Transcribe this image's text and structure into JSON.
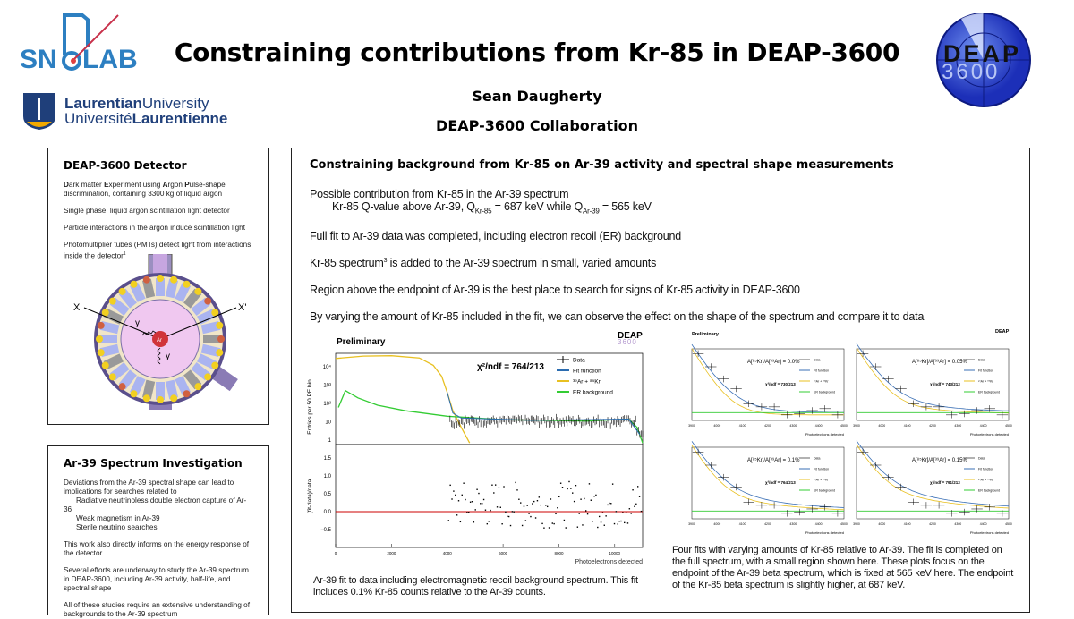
{
  "header": {
    "title": "Constraining contributions from Kr-85 in DEAP-3600",
    "author": "Sean Daugherty",
    "collaboration": "DEAP-3600 Collaboration",
    "logos": {
      "snolab": "SNOLAB",
      "laurentian_en_a": "Laurentian",
      "laurentian_en_b": "University",
      "laurentian_fr_a": "Université",
      "laurentian_fr_b": "Laurentienne",
      "deap_a": "DEAP",
      "deap_b": "3600"
    }
  },
  "detector": {
    "title": "DEAP-3600 Detector",
    "p1": [
      "D",
      "ark matter ",
      "E",
      "xperiment using ",
      "A",
      "rgon ",
      "P",
      "ulse-shape discrimination, containing 3300 kg of liquid argon"
    ],
    "p2": "Single phase, liquid argon scintillation light detector",
    "p3": "Particle interactions in the argon induce scintillation light",
    "p4": "Photomultiplier tubes (PMTs) detect light from interactions inside the detector",
    "p4_ref": "1",
    "diagram": {
      "x": "X",
      "xp": "X'",
      "gamma1": "γ",
      "gamma2": "γ",
      "ar": "Ar"
    }
  },
  "investigation": {
    "title": "Ar-39 Spectrum Investigation",
    "p1": "Deviations from the Ar-39 spectral shape can lead to implications for searches related to",
    "items": [
      "Radiative neutrinoless double electron capture of Ar-36",
      "Weak magnetism in Ar-39",
      "Sterile neutrino searches"
    ],
    "p2": "This work also directly informs on the energy response of the detector",
    "p3": "Several efforts are underway to study the Ar-39 spectrum in DEAP-3600, including Ar-39 activity, half-life, and spectral shape",
    "p4": "All of these studies require an extensive understanding of backgrounds to the Ar-39 spectrum"
  },
  "main": {
    "title": "Constraining background from Kr-85 on Ar-39 activity and spectral shape measurements",
    "b1": "Possible contribution from Kr-85 in the Ar-39 spectrum",
    "b1a_pre": "Kr-85 Q-value above Ar-39, Q",
    "b1a_sub1": "Kr-85",
    "b1a_mid": " = 687 keV while Q",
    "b1a_sub2": "Ar-39",
    "b1a_post": " = 565 keV",
    "b2": "Full fit to Ar-39 data was completed, including electron recoil (ER) background",
    "b3_pre": "Kr-85 spectrum",
    "b3_ref": "3",
    "b3_post": " is added to the Ar-39 spectrum in small, varied amounts",
    "b4": "Region above the endpoint of Ar-39 is the best place to search for signs of Kr-85 activity in DEAP-3600",
    "b5": "By varying the amount of Kr-85 included in the fit, we can observe the effect on the shape of the spectrum and compare it to data",
    "caption_left": "Ar-39 fit to data including electromagnetic recoil background spectrum. This fit includes 0.1% Kr-85 counts relative to the Ar-39 counts.",
    "caption_right": "Four fits with varying amounts of Kr-85 relative to Ar-39. The fit is completed on the full spectrum, with a small region shown here. These plots focus on the endpoint of the Ar-39 beta spectrum, which is fixed at 565 keV here. The endpoint of the Kr-85 beta spectrum is slightly higher, at 687 keV."
  },
  "chart_data": [
    {
      "type": "line",
      "title": "Preliminary",
      "watermark": "DEAP",
      "watermark2": "3600",
      "chi2": "χ²/ndf = 764/213",
      "ylabel": "Entries per 50 PE bin",
      "ylabel2": "(fit-data)/data",
      "xlabel": "Photoelectrons detected",
      "xlim": [
        0,
        11000
      ],
      "ylim_log": [
        0.6,
        100000
      ],
      "ylim2": [
        -0.9,
        1.8
      ],
      "xticks": [
        "0",
        "2000",
        "4000",
        "6000",
        "8000",
        "10000"
      ],
      "yticks": [
        "1",
        "10",
        "10²",
        "10³",
        "10⁴"
      ],
      "yticks2": [
        "−0.5",
        "0.0",
        "0.5",
        "1.0",
        "1.5"
      ],
      "legend": [
        "Data",
        "Fit function",
        "³⁹Ar + ⁸⁵Kr",
        "ER background"
      ],
      "colors": {
        "data": "#000000",
        "fit": "#2b6cb0",
        "ar": "#e8c021",
        "er": "#33cc33",
        "zero": "#cc0000"
      },
      "ar_curve": [
        [
          0,
          28000
        ],
        [
          1000,
          38000
        ],
        [
          2000,
          40000
        ],
        [
          3000,
          30000
        ],
        [
          3500,
          12000
        ],
        [
          3800,
          3000
        ],
        [
          4000,
          400
        ],
        [
          4200,
          40
        ],
        [
          4500,
          5
        ],
        [
          4800,
          0.7
        ]
      ],
      "er_curve": [
        [
          100,
          60
        ],
        [
          350,
          500
        ],
        [
          800,
          200
        ],
        [
          1500,
          80
        ],
        [
          2500,
          40
        ],
        [
          4000,
          20
        ],
        [
          6000,
          13
        ],
        [
          9000,
          11
        ],
        [
          10500,
          14
        ],
        [
          10800,
          5
        ],
        [
          11000,
          0.7
        ]
      ]
    },
    {
      "type": "line",
      "title": "Preliminary",
      "watermark": "DEAP",
      "xlabel": "Photoelectrons detected",
      "xlim": [
        3900,
        4500
      ],
      "xticks": [
        "3900",
        "4000",
        "4100",
        "4200",
        "4300",
        "4400",
        "4500"
      ],
      "legend": [
        "Data",
        "Fit function",
        "³⁹Ar + ⁸⁵Kr",
        "ER background"
      ],
      "panels": [
        {
          "ratio": "A[⁸⁵Kr]/A[³⁹Ar] = 0.0%",
          "chi2": "χ²/ndf = 730/213",
          "kr": 0.0
        },
        {
          "ratio": "A[⁸⁵Kr]/A[³⁹Ar] = 0.05%",
          "chi2": "χ²/ndf = 743/213",
          "kr": 0.05
        },
        {
          "ratio": "A[⁸⁵Kr]/A[³⁹Ar] = 0.1%",
          "chi2": "χ²/ndf = 764/213",
          "kr": 0.1
        },
        {
          "ratio": "A[⁸⁵Kr]/A[³⁹Ar] = 0.15%",
          "chi2": "χ²/ndf = 791/213",
          "kr": 0.15
        }
      ]
    }
  ]
}
